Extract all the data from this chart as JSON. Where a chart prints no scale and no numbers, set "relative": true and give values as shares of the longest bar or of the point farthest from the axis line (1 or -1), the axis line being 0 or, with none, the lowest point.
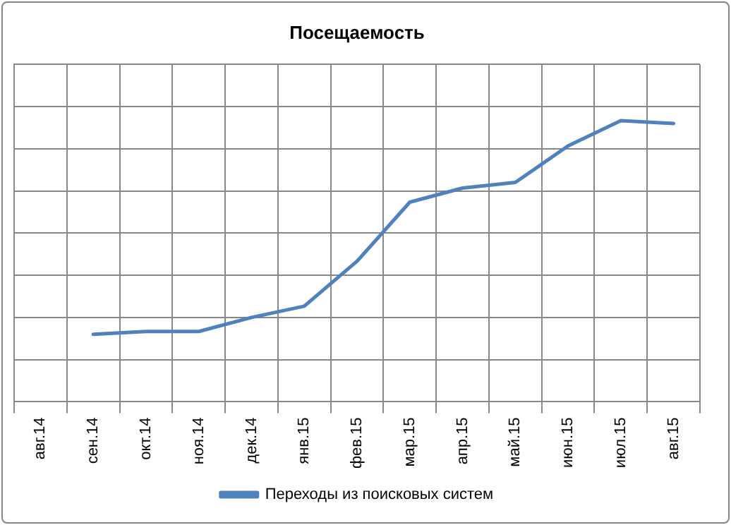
{
  "chart_data": {
    "type": "line",
    "title": "Посещаемость",
    "categories": [
      "авг.14",
      "сен.14",
      "окт.14",
      "ноя.14",
      "дек.14",
      "янв.15",
      "фев.15",
      "мар.15",
      "апр.15",
      "май.15",
      "июн.15",
      "июл.15",
      "авг.15"
    ],
    "series": [
      {
        "name": "Переходы из поисковых систем",
        "color": "#4f81bd",
        "values": [
          null,
          0.24,
          0.25,
          0.25,
          0.3,
          0.34,
          0.5,
          0.71,
          0.76,
          0.78,
          0.91,
          1,
          0.99
        ]
      }
    ],
    "relative": true,
    "grid": true,
    "legend": "bottom",
    "marker": "none",
    "line_style": "solid"
  }
}
